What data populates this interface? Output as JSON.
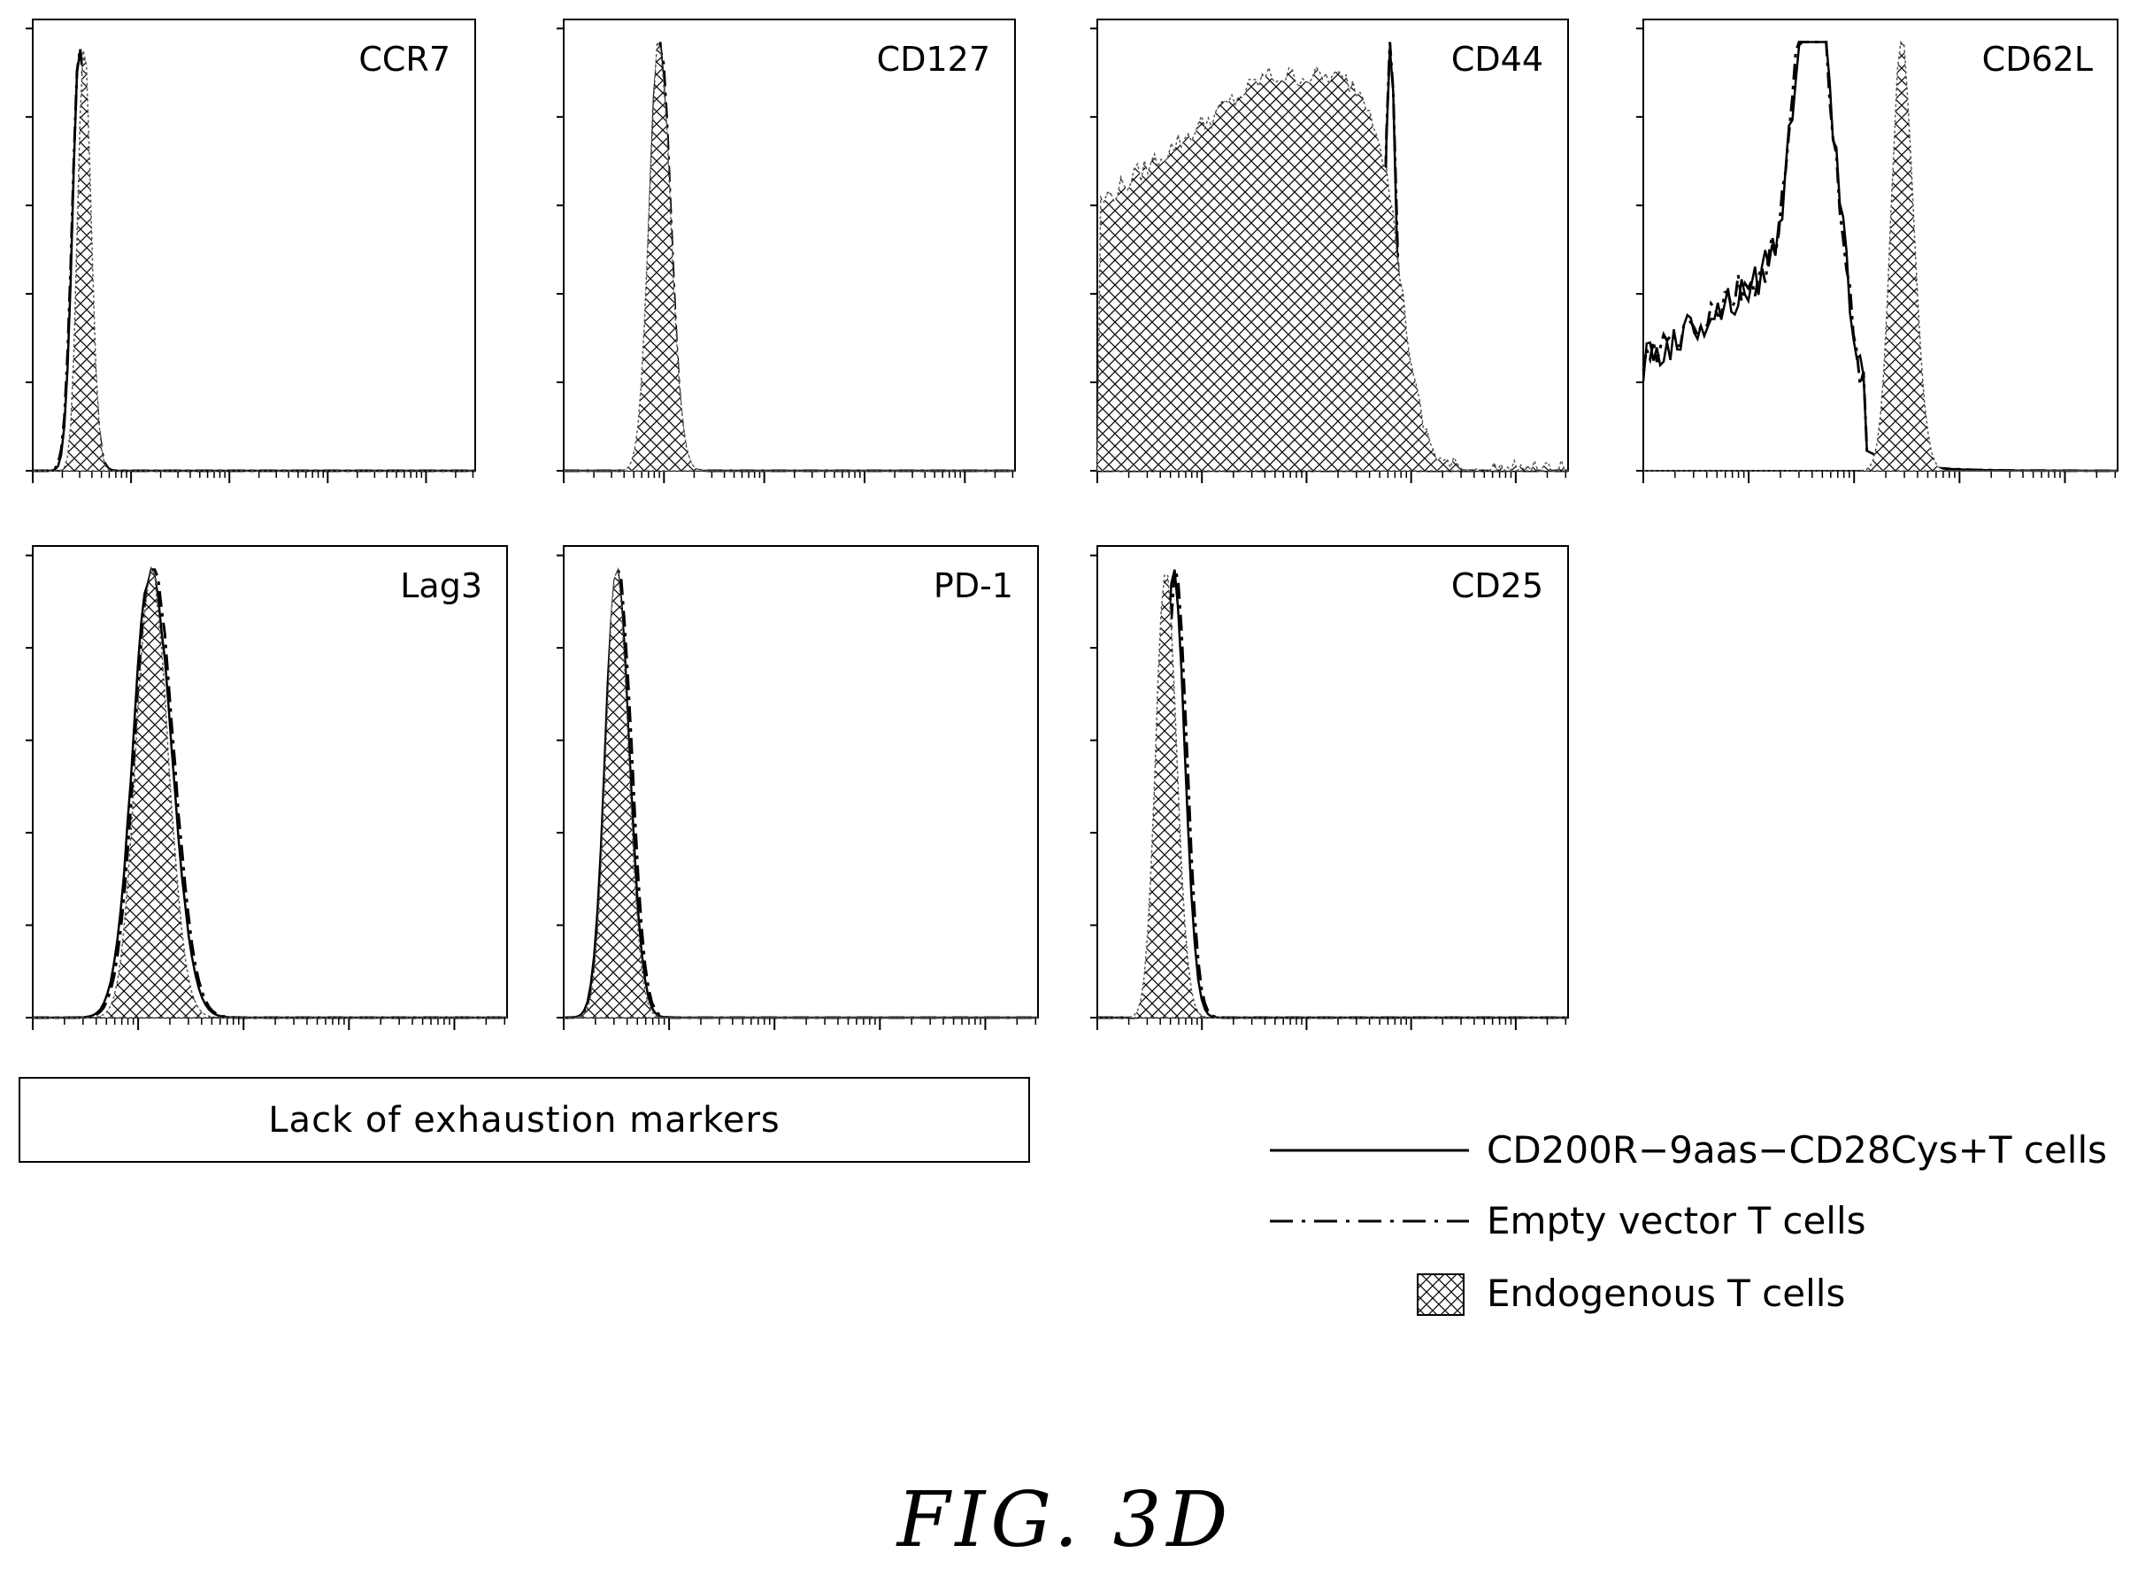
{
  "chart_data": [
    {
      "type": "area",
      "label": "CCR7",
      "series": [
        {
          "ref": "solid",
          "peak": 0.48,
          "width": 0.105
        },
        {
          "ref": "dashdot",
          "peak": 0.48,
          "width": 0.11
        },
        {
          "ref": "endogenous",
          "peak": 0.52,
          "width": 0.09
        }
      ]
    },
    {
      "type": "area",
      "label": "CD127",
      "series": [
        {
          "ref": "solid",
          "peak": 0.95,
          "width": 0.13
        },
        {
          "ref": "dashdot",
          "peak": 0.96,
          "width": 0.13
        },
        {
          "ref": "endogenous",
          "peak": 0.95,
          "width": 0.14
        }
      ]
    },
    {
      "type": "area",
      "label": "CD44",
      "series": [
        {
          "ref": "solid",
          "peak": 2.8,
          "width": 0.07
        },
        {
          "ref": "dashdot",
          "peak": 2.8,
          "width": 0.075
        },
        {
          "ref": "endogenous",
          "shape": "broad"
        }
      ]
    },
    {
      "type": "area",
      "label": "CD62L",
      "series": [
        {
          "ref": "solid",
          "shape": "cd62l"
        },
        {
          "ref": "dashdot",
          "shape": "cd62l"
        },
        {
          "ref": "endogenous",
          "peak": 2.45,
          "width": 0.14
        }
      ]
    },
    {
      "type": "area",
      "label": "Lag3",
      "series": [
        {
          "ref": "solid",
          "peak": 1.12,
          "width": 0.24
        },
        {
          "ref": "dashdot",
          "peak": 1.14,
          "width": 0.24
        },
        {
          "ref": "endogenous",
          "peak": 1.12,
          "width": 0.2
        }
      ]
    },
    {
      "type": "area",
      "label": "PD-1",
      "series": [
        {
          "ref": "solid",
          "peak": 0.5,
          "width": 0.15
        },
        {
          "ref": "dashdot",
          "peak": 0.52,
          "width": 0.15
        },
        {
          "ref": "endogenous",
          "peak": 0.5,
          "width": 0.14
        }
      ]
    },
    {
      "type": "area",
      "label": "CD25",
      "series": [
        {
          "ref": "solid",
          "peak": 0.73,
          "width": 0.13
        },
        {
          "ref": "dashdot",
          "peak": 0.75,
          "width": 0.13
        },
        {
          "ref": "endogenous",
          "peak": 0.65,
          "width": 0.13
        }
      ]
    }
  ],
  "note": "Lack of exhaustion markers",
  "legend": [
    {
      "style": "solid",
      "text": "CD200R−9aas−CD28Cys+T cells"
    },
    {
      "style": "dashdot",
      "text": "Empty vector T cells"
    },
    {
      "style": "hatched",
      "text": "Endogenous T cells"
    }
  ],
  "caption": "FIG.  3D"
}
